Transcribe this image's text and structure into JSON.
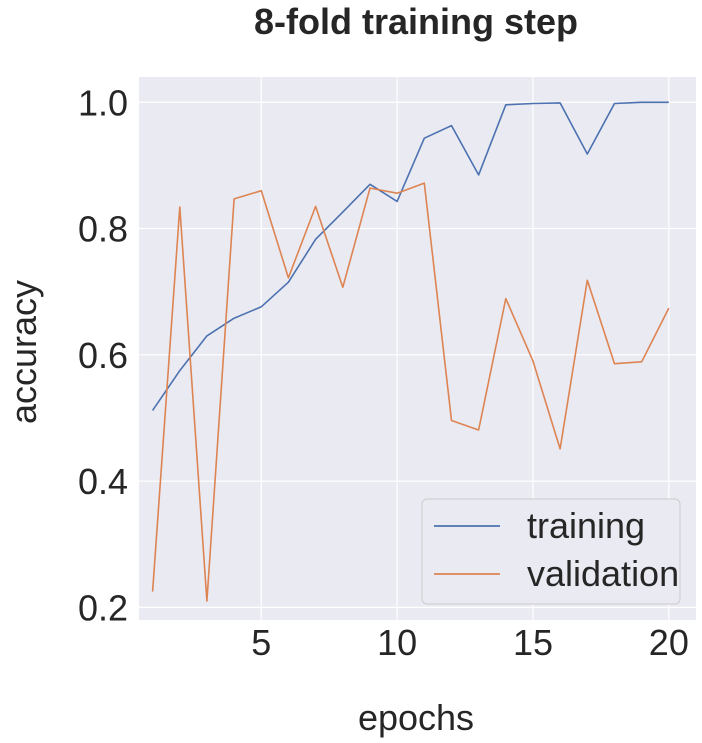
{
  "chart_data": {
    "type": "line",
    "title": "8-fold training step",
    "xlabel": "epochs",
    "ylabel": "accuracy",
    "xlim": [
      0.5,
      21
    ],
    "ylim": [
      0.18,
      1.04
    ],
    "xticks": [
      5,
      10,
      15,
      20
    ],
    "yticks": [
      0.2,
      0.4,
      0.6,
      0.8,
      1.0
    ],
    "grid": true,
    "legend_position": "bottom-right",
    "x": [
      1,
      2,
      3,
      4,
      5,
      6,
      7,
      8,
      9,
      10,
      11,
      12,
      13,
      14,
      15,
      16,
      17,
      18,
      19,
      20
    ],
    "series": [
      {
        "name": "training",
        "color": "#4c72b0",
        "values": [
          0.512,
          0.575,
          0.63,
          0.658,
          0.676,
          0.715,
          0.783,
          0.826,
          0.87,
          0.843,
          0.943,
          0.963,
          0.885,
          0.996,
          0.998,
          0.999,
          0.918,
          0.998,
          1.0,
          1.0
        ]
      },
      {
        "name": "validation",
        "color": "#dd8452",
        "values": [
          0.225,
          0.834,
          0.21,
          0.847,
          0.86,
          0.722,
          0.835,
          0.707,
          0.864,
          0.856,
          0.872,
          0.496,
          0.481,
          0.689,
          0.59,
          0.451,
          0.718,
          0.586,
          0.589,
          0.674
        ]
      }
    ]
  }
}
